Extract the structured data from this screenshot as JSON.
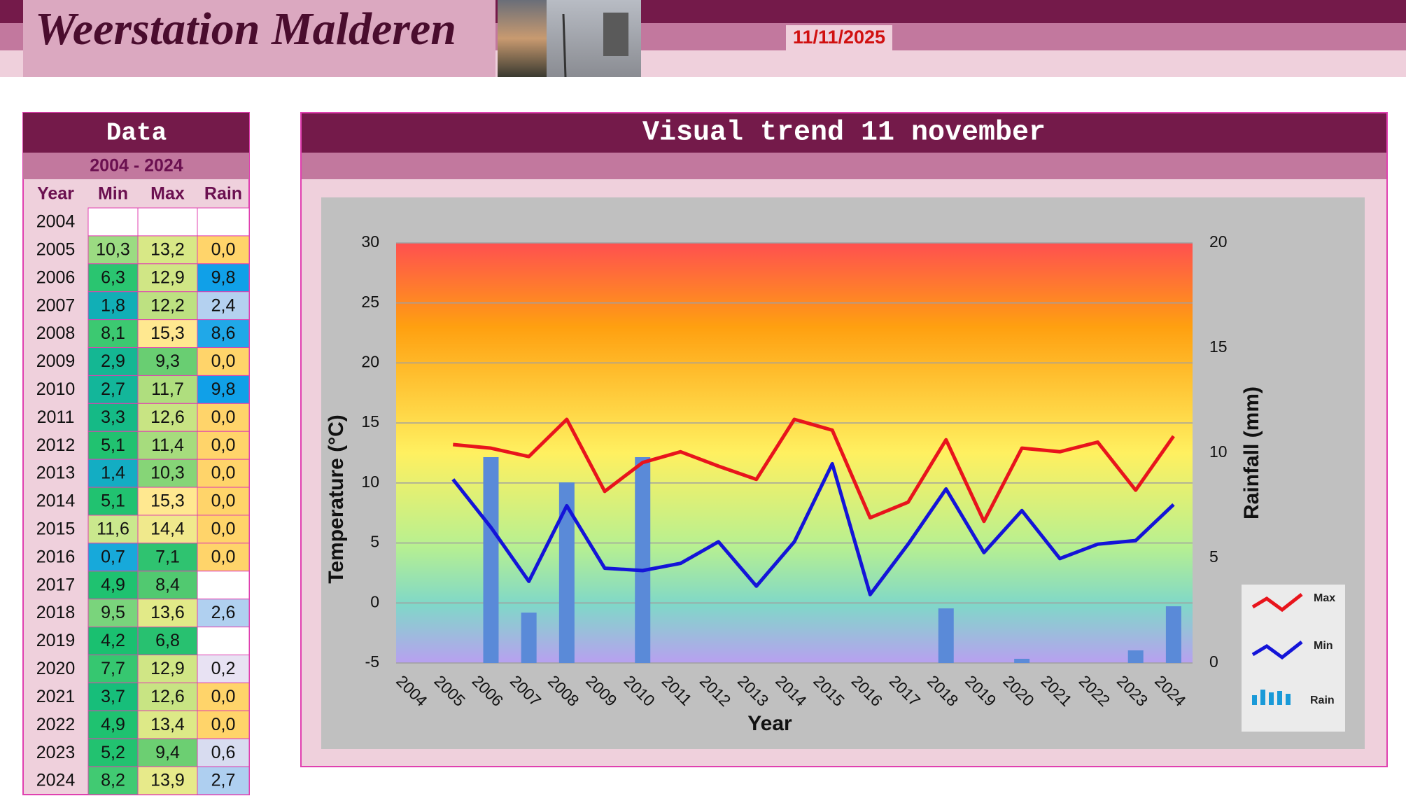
{
  "header": {
    "title": "Weerstation Malderen",
    "date": "11/11/2025"
  },
  "table": {
    "title": "Data",
    "period": "2004 - 2024",
    "columns": [
      "Year",
      "Min",
      "Max",
      "Rain"
    ],
    "rows": [
      [
        "2004",
        null,
        null,
        null
      ],
      [
        "2005",
        "10,3",
        "13,2",
        "0,0"
      ],
      [
        "2006",
        "6,3",
        "12,9",
        "9,8"
      ],
      [
        "2007",
        "1,8",
        "12,2",
        "2,4"
      ],
      [
        "2008",
        "8,1",
        "15,3",
        "8,6"
      ],
      [
        "2009",
        "2,9",
        "9,3",
        "0,0"
      ],
      [
        "2010",
        "2,7",
        "11,7",
        "9,8"
      ],
      [
        "2011",
        "3,3",
        "12,6",
        "0,0"
      ],
      [
        "2012",
        "5,1",
        "11,4",
        "0,0"
      ],
      [
        "2013",
        "1,4",
        "10,3",
        "0,0"
      ],
      [
        "2014",
        "5,1",
        "15,3",
        "0,0"
      ],
      [
        "2015",
        "11,6",
        "14,4",
        "0,0"
      ],
      [
        "2016",
        "0,7",
        "7,1",
        "0,0"
      ],
      [
        "2017",
        "4,9",
        "8,4",
        null
      ],
      [
        "2018",
        "9,5",
        "13,6",
        "2,6"
      ],
      [
        "2019",
        "4,2",
        "6,8",
        null
      ],
      [
        "2020",
        "7,7",
        "12,9",
        "0,2"
      ],
      [
        "2021",
        "3,7",
        "12,6",
        "0,0"
      ],
      [
        "2022",
        "4,9",
        "13,4",
        "0,0"
      ],
      [
        "2023",
        "5,2",
        "9,4",
        "0,6"
      ],
      [
        "2024",
        "8,2",
        "13,9",
        "2,7"
      ]
    ]
  },
  "chart_data": {
    "type": "line",
    "title": "Visual trend 11 november",
    "x_label": "Year",
    "y_label": "Temperature (°C)",
    "y2_label": "Rainfall (mm)",
    "categories": [
      "2004",
      "2005",
      "2006",
      "2007",
      "2008",
      "2009",
      "2010",
      "2011",
      "2012",
      "2013",
      "2014",
      "2015",
      "2016",
      "2017",
      "2018",
      "2019",
      "2020",
      "2021",
      "2022",
      "2023",
      "2024"
    ],
    "series": [
      {
        "name": "Max",
        "color": "#e8141c",
        "values": [
          null,
          13.2,
          12.9,
          12.2,
          15.3,
          9.3,
          11.7,
          12.6,
          11.4,
          10.3,
          15.3,
          14.4,
          7.1,
          8.4,
          13.6,
          6.8,
          12.9,
          12.6,
          13.4,
          9.4,
          13.9
        ]
      },
      {
        "name": "Min",
        "color": "#1414d8",
        "values": [
          null,
          10.3,
          6.3,
          1.8,
          8.1,
          2.9,
          2.7,
          3.3,
          5.1,
          1.4,
          5.1,
          11.6,
          0.7,
          4.9,
          9.5,
          4.2,
          7.7,
          3.7,
          4.9,
          5.2,
          8.2
        ]
      },
      {
        "name": "Rain",
        "type": "bar",
        "axis": "y2",
        "color": "#5a8ad8",
        "values": [
          null,
          0,
          9.8,
          2.4,
          8.6,
          0,
          9.8,
          0,
          0,
          0,
          0,
          0,
          0,
          null,
          2.6,
          null,
          0.2,
          0,
          0,
          0.6,
          2.7
        ]
      }
    ],
    "ylim": [
      -5,
      30
    ],
    "yticks": [
      -5,
      0,
      5,
      10,
      15,
      20,
      25,
      30
    ],
    "y2lim": [
      0,
      20
    ],
    "y2ticks": [
      0,
      5,
      10,
      15,
      20
    ],
    "grid": true,
    "legend": "right"
  }
}
